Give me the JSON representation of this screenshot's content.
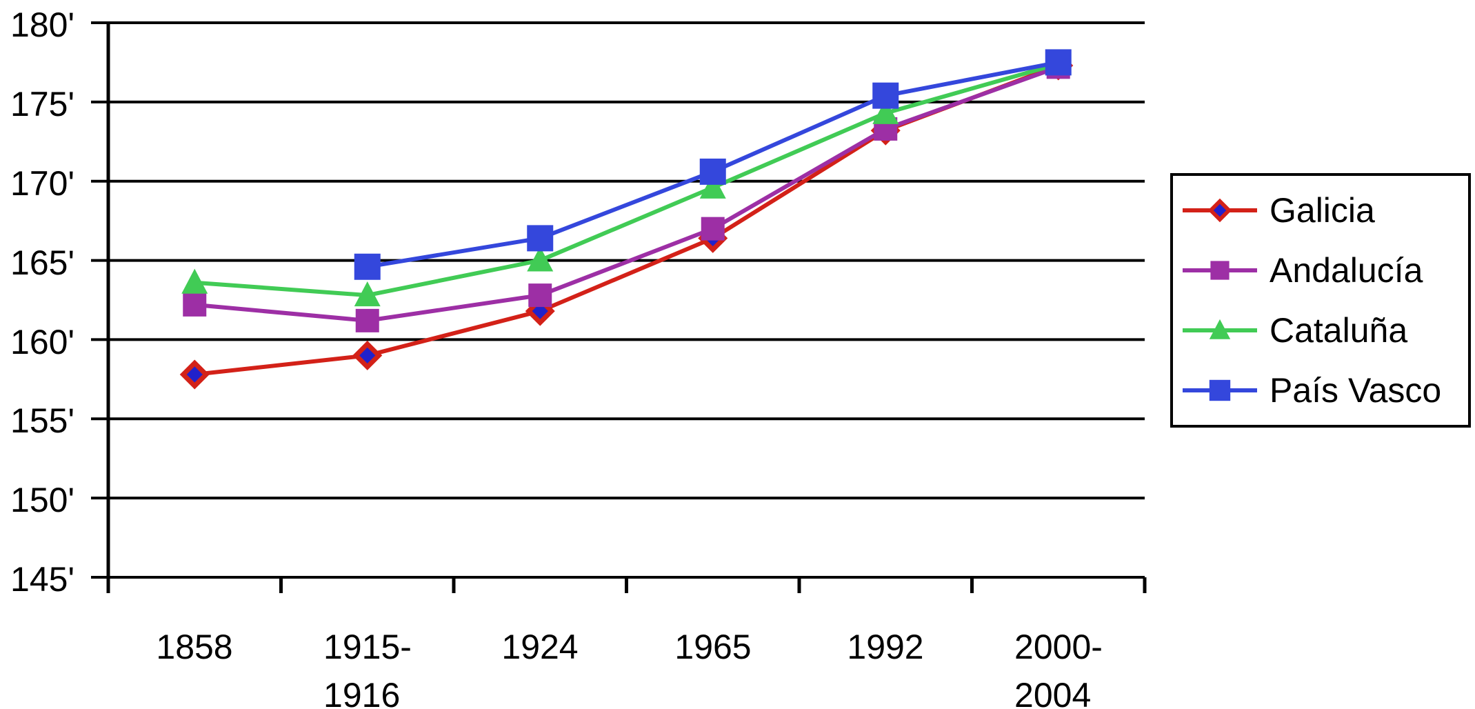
{
  "chart_data": {
    "type": "line",
    "title": "",
    "xlabel": "",
    "ylabel": "",
    "grid": true,
    "background": "#ffffff",
    "gridline_color": "#000000",
    "categories": [
      {
        "lines": [
          "1858"
        ]
      },
      {
        "lines": [
          "1915-",
          "1916"
        ]
      },
      {
        "lines": [
          "1924"
        ]
      },
      {
        "lines": [
          "1965"
        ]
      },
      {
        "lines": [
          "1992"
        ]
      },
      {
        "lines": [
          "2000-",
          "2004"
        ]
      }
    ],
    "y_axis": {
      "min": 145,
      "max": 180,
      "step": 5,
      "tick_suffix": "'",
      "tick_labels": [
        "180'",
        "175'",
        "170'",
        "165'",
        "160'",
        "155'",
        "150'",
        "145'"
      ]
    },
    "ylim": [
      145,
      180
    ],
    "series": [
      {
        "name": "Galicia",
        "color": "#d32118",
        "marker": "diamond",
        "marker_fill": "#2121cb",
        "marker_size": 36,
        "values": [
          157.8,
          159.0,
          161.8,
          166.4,
          173.2,
          177.3
        ]
      },
      {
        "name": "Andalucía",
        "color": "#9d2fa5",
        "marker": "square",
        "marker_fill": "#9d2fa5",
        "marker_size": 34,
        "values": [
          162.2,
          161.2,
          162.8,
          167.0,
          173.3,
          177.2
        ]
      },
      {
        "name": "Cataluña",
        "color": "#41cb55",
        "marker": "triangle",
        "marker_fill": "#41cb55",
        "marker_size": 38,
        "values": [
          163.6,
          162.8,
          165.0,
          169.6,
          174.3,
          177.4
        ]
      },
      {
        "name": "País Vasco",
        "color": "#3447dc",
        "marker": "square",
        "marker_fill": "#3447dc",
        "marker_size": 38,
        "values": [
          null,
          164.6,
          166.4,
          170.6,
          175.4,
          177.5
        ]
      }
    ],
    "legend": {
      "position": "right",
      "border_color": "#000000"
    }
  }
}
